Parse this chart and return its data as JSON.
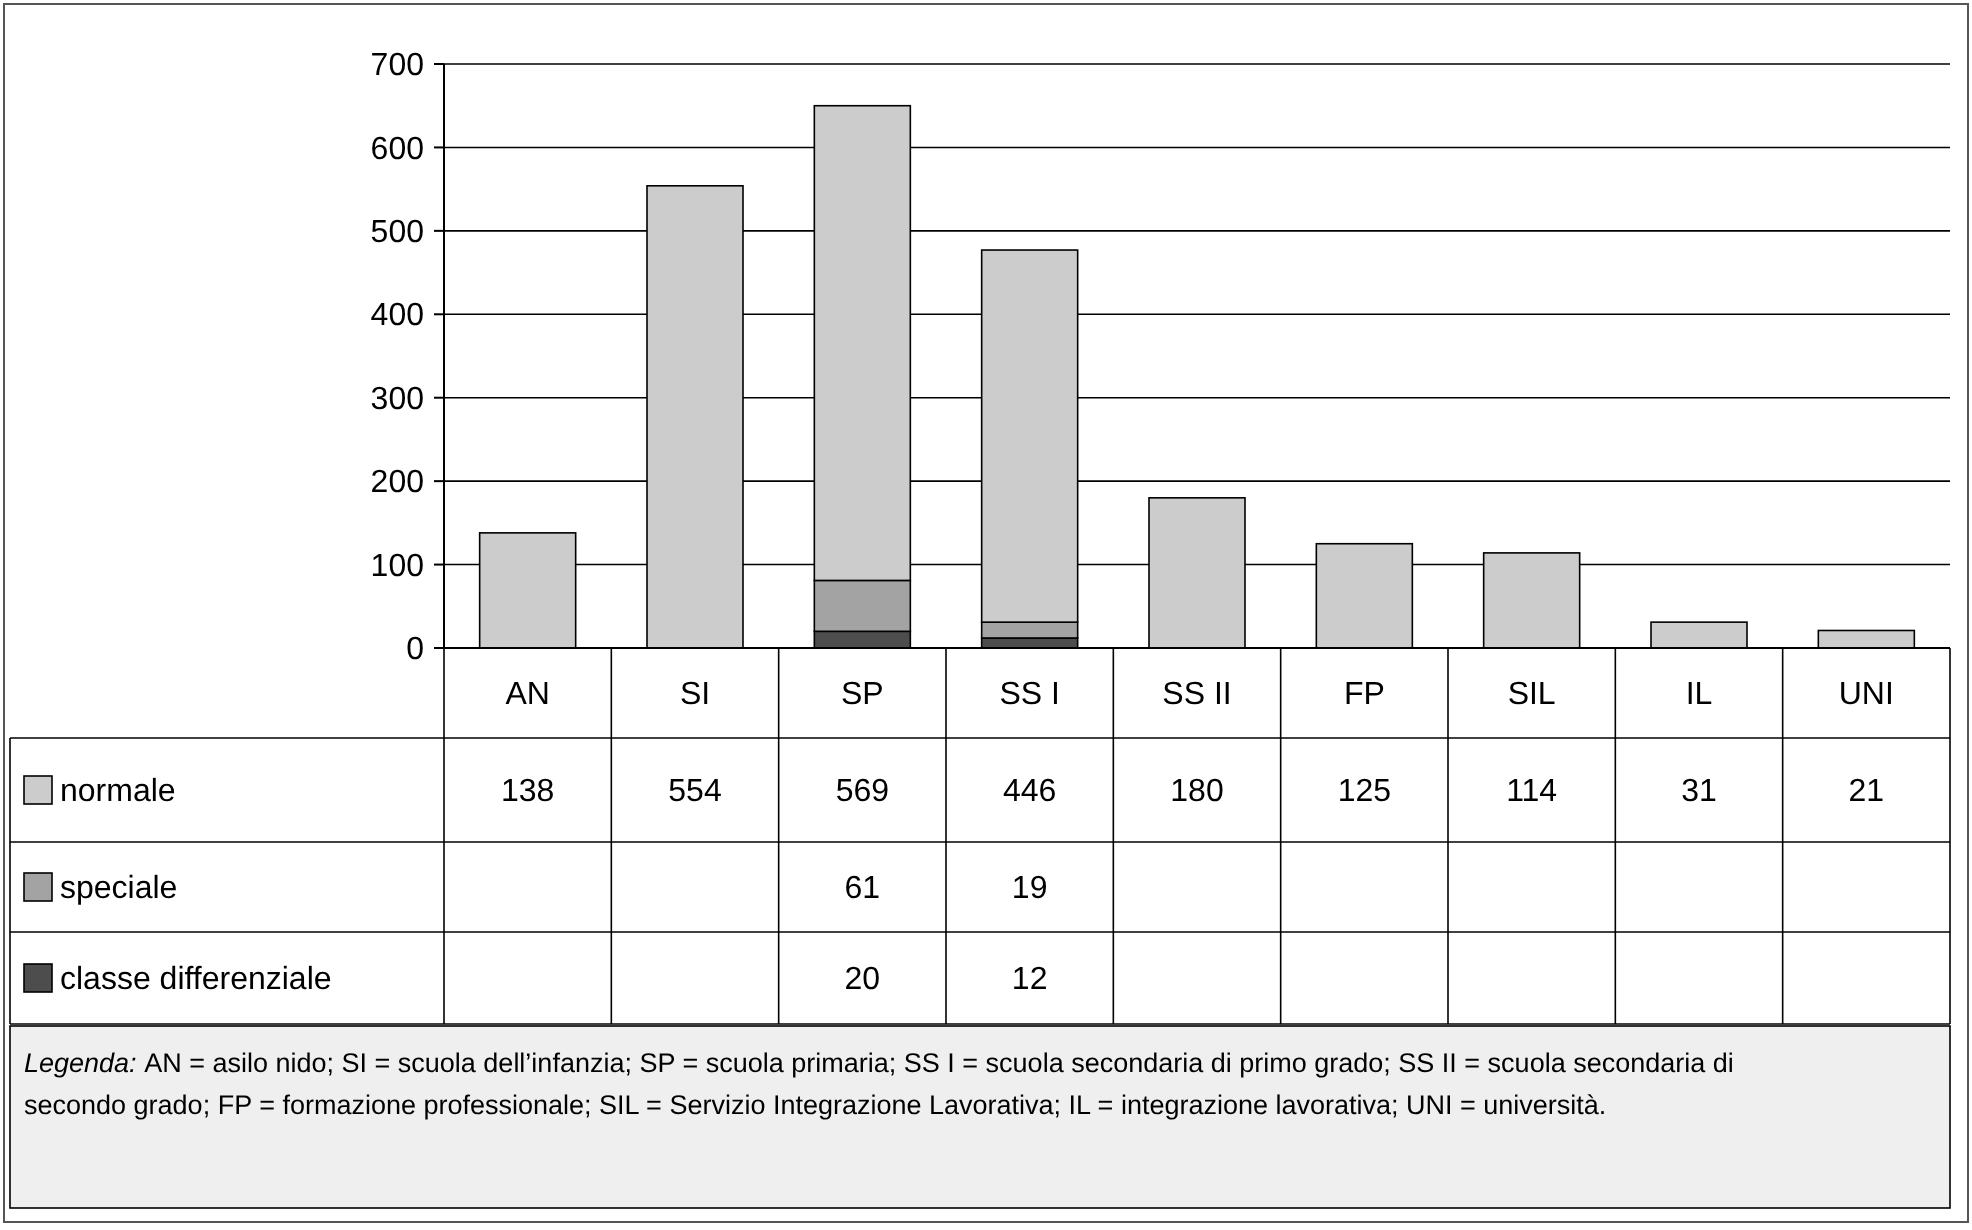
{
  "chart_data": {
    "type": "bar",
    "stacked": true,
    "categories": [
      "AN",
      "SI",
      "SP",
      "SS I",
      "SS II",
      "FP",
      "SIL",
      "IL",
      "UNI"
    ],
    "series": [
      {
        "name": "classe differenziale",
        "color": "#4d4d4d",
        "values": [
          null,
          null,
          20,
          12,
          null,
          null,
          null,
          null,
          null
        ]
      },
      {
        "name": "speciale",
        "color": "#a3a3a3",
        "values": [
          null,
          null,
          61,
          19,
          null,
          null,
          null,
          null,
          null
        ]
      },
      {
        "name": "normale",
        "color": "#cccccc",
        "values": [
          138,
          554,
          569,
          446,
          180,
          125,
          114,
          31,
          21
        ]
      }
    ],
    "ylim": [
      0,
      700
    ],
    "yticks": [
      0,
      100,
      200,
      300,
      400,
      500,
      600,
      700
    ],
    "grid": "y",
    "legend": "bottom",
    "data_labels": true,
    "annotations": [
      "Legenda:",
      "AN = asilo nido; SI = scuola dell’infanzia; SP = scuola primaria; SS I = scuola secondaria di primo grado; SS II = scuola secondaria di secondo grado; FP = formazione professionale; SIL = Servizio Integrazione Lavorativa; IL = integrazione lavorativa; UNI = università."
    ]
  }
}
